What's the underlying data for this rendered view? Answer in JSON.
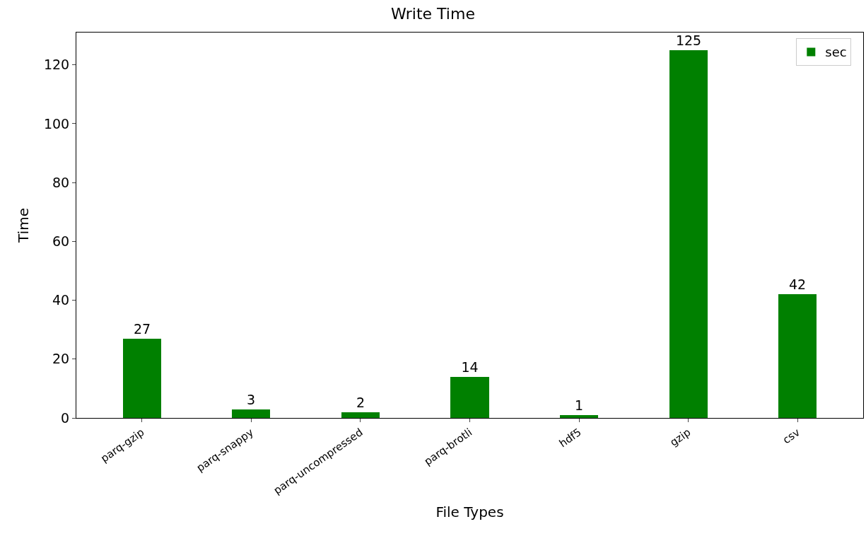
{
  "chart_data": {
    "type": "bar",
    "title": "Write Time",
    "xlabel": "File Types",
    "ylabel": "Time",
    "categories": [
      "parq-gzip",
      "parq-snappy",
      "parq-uncompressed",
      "parq-brotli",
      "hdf5",
      "gzip",
      "csv"
    ],
    "series": [
      {
        "name": "sec",
        "color": "#008000",
        "values": [
          27,
          3,
          2,
          14,
          1,
          125,
          42
        ]
      }
    ],
    "ylim": [
      0,
      131
    ],
    "yticks": [
      0,
      20,
      40,
      60,
      80,
      100,
      120
    ],
    "data_labels": true,
    "legend": "top right"
  }
}
